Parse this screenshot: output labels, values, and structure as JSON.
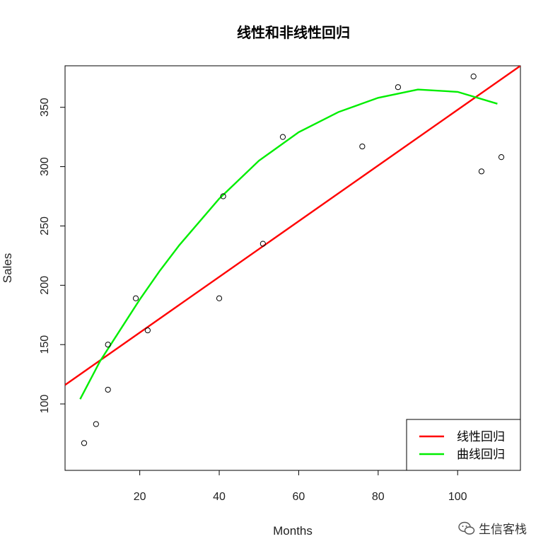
{
  "chart_data": {
    "type": "scatter",
    "title": "线性和非线性回归",
    "xlabel": "Months",
    "ylabel": "Sales",
    "xlim": [
      1.2,
      115.8
    ],
    "ylim": [
      44,
      385
    ],
    "x_ticks": [
      20,
      40,
      60,
      80,
      100
    ],
    "y_ticks": [
      100,
      150,
      200,
      250,
      300,
      350
    ],
    "grid": false,
    "legend_position": "bottom-right",
    "points": [
      {
        "x": 6,
        "y": 67
      },
      {
        "x": 9,
        "y": 83
      },
      {
        "x": 12,
        "y": 112
      },
      {
        "x": 12,
        "y": 150
      },
      {
        "x": 19,
        "y": 189
      },
      {
        "x": 22,
        "y": 162
      },
      {
        "x": 40,
        "y": 189
      },
      {
        "x": 41,
        "y": 275
      },
      {
        "x": 51,
        "y": 235
      },
      {
        "x": 56,
        "y": 325
      },
      {
        "x": 76,
        "y": 317
      },
      {
        "x": 85,
        "y": 367
      },
      {
        "x": 104,
        "y": 376
      },
      {
        "x": 106,
        "y": 296
      },
      {
        "x": 111,
        "y": 308
      }
    ],
    "series": [
      {
        "name": "线性回归",
        "color": "#ff0000",
        "kind": "line",
        "x": [
          1.2,
          115.8
        ],
        "y": [
          116,
          385
        ]
      },
      {
        "name": "曲线回归",
        "color": "#00ee00",
        "kind": "curve",
        "x": [
          5,
          10,
          15,
          20,
          25,
          30,
          40,
          50,
          60,
          70,
          80,
          90,
          100,
          110
        ],
        "y": [
          104,
          136,
          162,
          188,
          212,
          234,
          273,
          305,
          329,
          346,
          358,
          365,
          363,
          353
        ]
      }
    ]
  },
  "watermark": {
    "text": "生信客栈",
    "icon": "wechat-icon"
  }
}
